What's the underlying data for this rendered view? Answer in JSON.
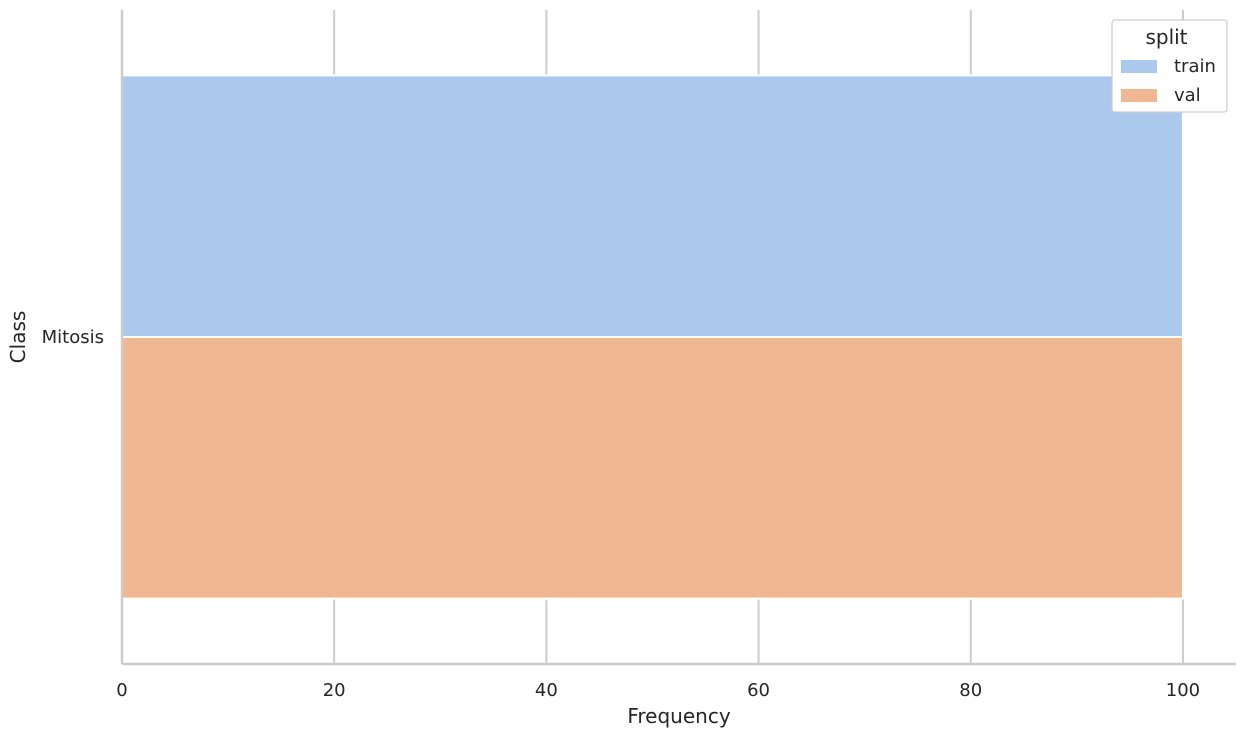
{
  "chart_data": {
    "type": "bar",
    "orientation": "horizontal",
    "categories": [
      "Mitosis"
    ],
    "series": [
      {
        "name": "train",
        "values": [
          100
        ],
        "color": "#abc9ec"
      },
      {
        "name": "val",
        "values": [
          100
        ],
        "color": "#f0b793"
      }
    ],
    "xlabel": "Frequency",
    "ylabel": "Class",
    "xlim": [
      0,
      105
    ],
    "xticks": [
      0,
      20,
      40,
      60,
      80,
      100
    ],
    "grid": true,
    "legend": {
      "title": "split",
      "placement": "top-right"
    }
  }
}
